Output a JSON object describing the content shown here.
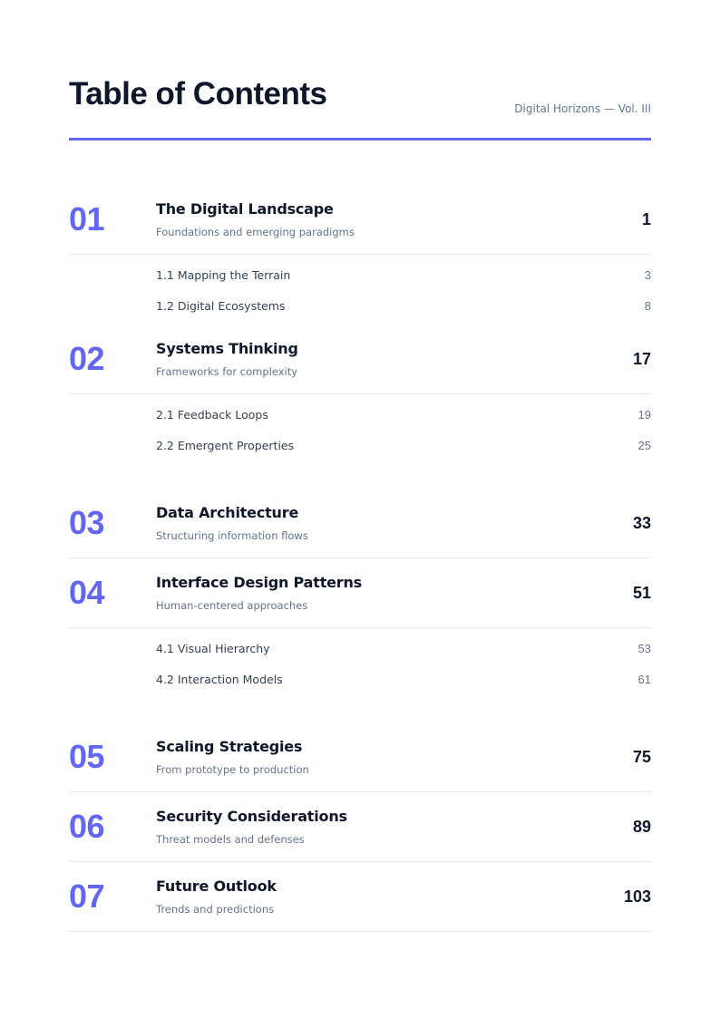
{
  "header": {
    "title": "Table of Contents",
    "subtitle": "Digital Horizons — Vol. III",
    "accent_color": "#6366f1"
  },
  "groups": [
    {
      "chapters": [
        {
          "number": "01",
          "title": "The Digital Landscape",
          "description": "Foundations and emerging paradigms",
          "page": "1",
          "sections": [
            {
              "label": "1.1 Mapping the Terrain",
              "page": "3"
            },
            {
              "label": "1.2 Digital Ecosystems",
              "page": "8"
            }
          ]
        },
        {
          "number": "02",
          "title": "Systems Thinking",
          "description": "Frameworks for complexity",
          "page": "17",
          "sections": [
            {
              "label": "2.1 Feedback Loops",
              "page": "19"
            },
            {
              "label": "2.2 Emergent Properties",
              "page": "25"
            }
          ]
        }
      ]
    },
    {
      "chapters": [
        {
          "number": "03",
          "title": "Data Architecture",
          "description": "Structuring information flows",
          "page": "33",
          "sections": []
        },
        {
          "number": "04",
          "title": "Interface Design Patterns",
          "description": "Human-centered approaches",
          "page": "51",
          "sections": [
            {
              "label": "4.1 Visual Hierarchy",
              "page": "53"
            },
            {
              "label": "4.2 Interaction Models",
              "page": "61"
            }
          ]
        }
      ]
    },
    {
      "chapters": [
        {
          "number": "05",
          "title": "Scaling Strategies",
          "description": "From prototype to production",
          "page": "75",
          "sections": []
        },
        {
          "number": "06",
          "title": "Security Considerations",
          "description": "Threat models and defenses",
          "page": "89",
          "sections": []
        },
        {
          "number": "07",
          "title": "Future Outlook",
          "description": "Trends and predictions",
          "page": "103",
          "sections": []
        }
      ]
    }
  ]
}
